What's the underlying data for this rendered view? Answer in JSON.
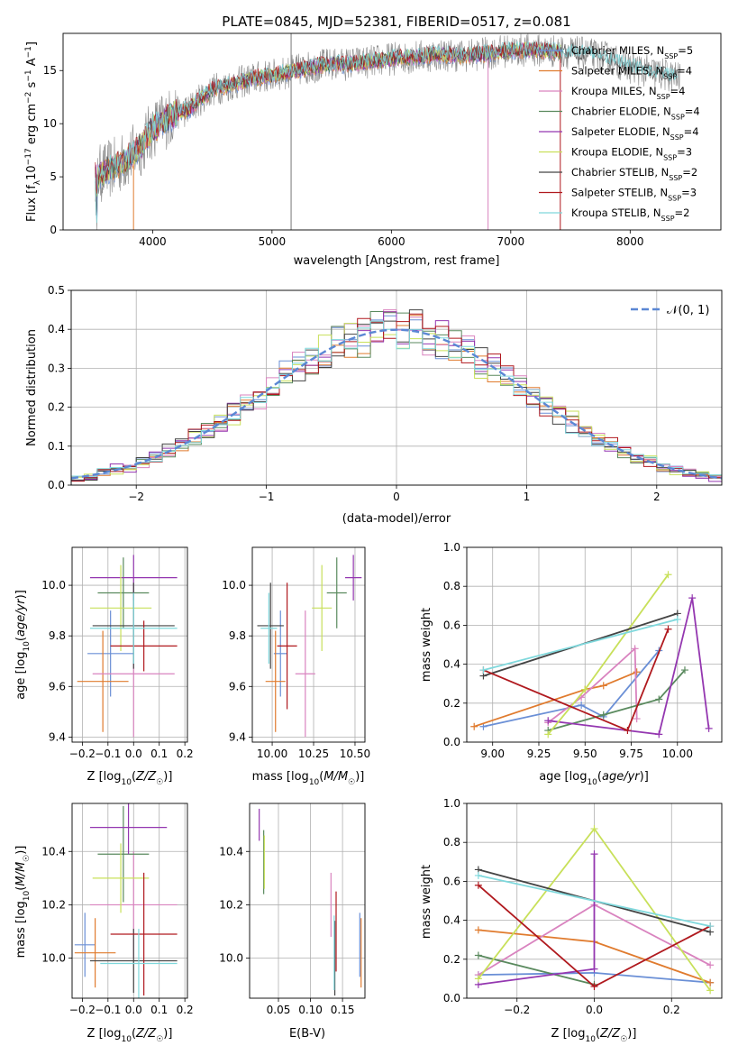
{
  "colors": [
    "#6a8fd6",
    "#e07b2e",
    "#d983bf",
    "#5a8a5e",
    "#9437b0",
    "#c8e05a",
    "#444444",
    "#b0191e",
    "#7fd8dc"
  ],
  "legend": [
    "Chabrier MILES, N_SSP=5",
    "Salpeter MILES, N_SSP=4",
    "Kroupa MILES, N_SSP=4",
    "Chabrier ELODIE, N_SSP=4",
    "Salpeter ELODIE, N_SSP=4",
    "Kroupa ELODIE, N_SSP=3",
    "Chabrier STELIB, N_SSP=2",
    "Salpeter STELIB, N_SSP=3",
    "Kroupa STELIB, N_SSP=2"
  ],
  "chart_data": [
    {
      "type": "line",
      "id": "spectrum",
      "title": "PLATE=0845, MJD=52381, FIBERID=0517, z=0.081",
      "xlabel": "wavelength [Angstrom, rest frame]",
      "ylabel": "Flux [f_λ10^-17 erg cm^-2 s^-1 A^-1]",
      "xlim": [
        3250,
        8760
      ],
      "ylim": [
        0,
        18.5
      ],
      "xticks": [
        4000,
        5000,
        6000,
        7000,
        8000
      ],
      "yticks": [
        0,
        5,
        10,
        15
      ],
      "continuum": {
        "x": [
          3520,
          3600,
          3700,
          3800,
          3900,
          4000,
          4100,
          4200,
          4300,
          4400,
          4500,
          4600,
          4700,
          4800,
          4900,
          5000,
          5200,
          5400,
          5600,
          5800,
          6000,
          6200,
          6400,
          6600,
          6800,
          7000,
          7200,
          7400,
          7600,
          7800,
          8000,
          8200,
          8400
        ],
        "y": [
          5.0,
          5.5,
          6.0,
          6.8,
          7.8,
          9.5,
          10.3,
          11.0,
          11.3,
          12.3,
          13.2,
          13.5,
          13.8,
          14.1,
          14.4,
          14.5,
          15.0,
          15.5,
          15.6,
          15.8,
          16.1,
          16.3,
          16.5,
          16.4,
          16.6,
          16.9,
          16.9,
          16.8,
          16.6,
          16.2,
          15.3,
          14.8,
          14.3
        ]
      }
    },
    {
      "type": "bar",
      "id": "residual-histogram",
      "xlabel": "(data-model)/error",
      "ylabel": "Normed distribution",
      "xlim": [
        -2.5,
        2.5
      ],
      "ylim": [
        0,
        0.5
      ],
      "xticks": [
        -2,
        -1,
        0,
        1,
        2
      ],
      "yticks": [
        0,
        0.1,
        0.2,
        0.3,
        0.4,
        0.5
      ],
      "bin_width": 0.1,
      "reference": {
        "name": "𝒩(0, 1)",
        "mean": 0,
        "sigma": 1
      }
    },
    {
      "type": "scatter",
      "id": "age-vs-metallicity",
      "xlabel": "Z [log10(Z/Z☉)]",
      "ylabel": "age  [log10(age/yr)]",
      "xlim": [
        -0.24,
        0.21
      ],
      "ylim": [
        9.38,
        10.15
      ],
      "xticks": [
        -0.2,
        -0.1,
        0.0,
        0.1,
        0.2
      ],
      "yticks": [
        9.4,
        9.6,
        9.8,
        10.0
      ],
      "points": [
        {
          "x": -0.09,
          "xerr": 0.09,
          "y": 9.73,
          "yerr": 0.17
        },
        {
          "x": -0.12,
          "xerr": 0.1,
          "y": 9.62,
          "yerr": 0.2
        },
        {
          "x": 0.0,
          "xerr": 0.16,
          "y": 9.65,
          "yerr": 0.25
        },
        {
          "x": -0.04,
          "xerr": 0.1,
          "y": 9.97,
          "yerr": 0.14
        },
        {
          "x": 0.0,
          "xerr": 0.17,
          "y": 10.03,
          "yerr": 0.09
        },
        {
          "x": -0.05,
          "xerr": 0.12,
          "y": 9.91,
          "yerr": 0.17
        },
        {
          "x": 0.0,
          "xerr": 0.16,
          "y": 9.84,
          "yerr": 0.17
        },
        {
          "x": 0.04,
          "xerr": 0.13,
          "y": 9.76,
          "yerr": 0.1
        },
        {
          "x": 0.0,
          "xerr": 0.17,
          "y": 9.83,
          "yerr": 0.14
        }
      ]
    },
    {
      "type": "scatter",
      "id": "age-vs-mass",
      "xlabel": "mass [log10(M/M☉)]",
      "ylabel": "",
      "xlim": [
        9.88,
        10.56
      ],
      "ylim": [
        9.38,
        10.15
      ],
      "xticks": [
        10.0,
        10.25,
        10.5
      ],
      "yticks": [
        9.4,
        9.6,
        9.8,
        10.0
      ],
      "points": [
        {
          "x": 10.05,
          "xerr": 0.04,
          "y": 9.73,
          "yerr": 0.17
        },
        {
          "x": 10.02,
          "xerr": 0.06,
          "y": 9.62,
          "yerr": 0.2
        },
        {
          "x": 10.2,
          "xerr": 0.06,
          "y": 9.65,
          "yerr": 0.25
        },
        {
          "x": 10.39,
          "xerr": 0.06,
          "y": 9.97,
          "yerr": 0.14
        },
        {
          "x": 10.49,
          "xerr": 0.05,
          "y": 10.03,
          "yerr": 0.09
        },
        {
          "x": 10.3,
          "xerr": 0.06,
          "y": 9.91,
          "yerr": 0.17
        },
        {
          "x": 9.99,
          "xerr": 0.08,
          "y": 9.84,
          "yerr": 0.17
        },
        {
          "x": 10.09,
          "xerr": 0.06,
          "y": 9.76,
          "yerr": 0.25
        },
        {
          "x": 9.98,
          "xerr": 0.05,
          "y": 9.83,
          "yerr": 0.14
        }
      ]
    },
    {
      "type": "line",
      "id": "weight-vs-age",
      "xlabel": "age  [log10(age/yr)]",
      "ylabel": "mass weight",
      "xlim": [
        8.86,
        10.24
      ],
      "ylim": [
        0,
        1
      ],
      "xticks": [
        9.0,
        9.25,
        9.5,
        9.75,
        10.0
      ],
      "yticks": [
        0,
        0.2,
        0.4,
        0.6,
        0.8,
        1.0
      ],
      "series": [
        {
          "x": [
            8.95,
            9.48,
            9.6,
            9.9
          ],
          "y": [
            0.08,
            0.19,
            0.13,
            0.47
          ]
        },
        {
          "x": [
            8.9,
            9.5,
            9.6,
            9.78
          ],
          "y": [
            0.08,
            0.27,
            0.29,
            0.36
          ]
        },
        {
          "x": [
            9.3,
            9.48,
            9.77,
            9.78
          ],
          "y": [
            0.1,
            0.23,
            0.48,
            0.12
          ]
        },
        {
          "x": [
            9.3,
            9.6,
            9.9,
            10.04
          ],
          "y": [
            0.06,
            0.14,
            0.22,
            0.37
          ]
        },
        {
          "x": [
            9.3,
            9.9,
            10.08,
            10.17
          ],
          "y": [
            0.11,
            0.04,
            0.74,
            0.07
          ]
        },
        {
          "x": [
            9.3,
            9.5,
            9.95
          ],
          "y": [
            0.04,
            0.27,
            0.86
          ]
        },
        {
          "x": [
            8.95,
            10.0
          ],
          "y": [
            0.34,
            0.66
          ]
        },
        {
          "x": [
            8.95,
            9.73,
            9.95
          ],
          "y": [
            0.37,
            0.06,
            0.58
          ]
        },
        {
          "x": [
            8.95,
            10.0
          ],
          "y": [
            0.37,
            0.63
          ]
        }
      ]
    },
    {
      "type": "scatter",
      "id": "mass-vs-metallicity",
      "xlabel": "Z [log10(Z/Z☉)]",
      "ylabel": "mass [log10(M/M☉)]",
      "xlim": [
        -0.24,
        0.21
      ],
      "ylim": [
        9.85,
        10.58
      ],
      "xticks": [
        -0.2,
        -0.1,
        0.0,
        0.1,
        0.2
      ],
      "yticks": [
        10.0,
        10.2,
        10.4
      ],
      "points": [
        {
          "x": -0.19,
          "xerr": 0.04,
          "y": 10.05,
          "yerr": 0.12
        },
        {
          "x": -0.15,
          "xerr": 0.08,
          "y": 10.02,
          "yerr": 0.13
        },
        {
          "x": 0.0,
          "xerr": 0.17,
          "y": 10.2,
          "yerr": 0.2
        },
        {
          "x": -0.04,
          "xerr": 0.1,
          "y": 10.39,
          "yerr": 0.18
        },
        {
          "x": -0.02,
          "xerr": 0.15,
          "y": 10.49,
          "yerr": 0.1
        },
        {
          "x": -0.05,
          "xerr": 0.11,
          "y": 10.3,
          "yerr": 0.13
        },
        {
          "x": 0.0,
          "xerr": 0.17,
          "y": 9.99,
          "yerr": 0.12
        },
        {
          "x": 0.04,
          "xerr": 0.13,
          "y": 10.09,
          "yerr": 0.23
        },
        {
          "x": 0.02,
          "xerr": 0.15,
          "y": 9.98,
          "yerr": 0.13
        }
      ]
    },
    {
      "type": "scatter",
      "id": "mass-vs-extinction",
      "xlabel": "E(B-V)",
      "ylabel": "",
      "xlim": [
        0.005,
        0.185
      ],
      "ylim": [
        9.85,
        10.58
      ],
      "xticks": [
        0.05,
        0.1,
        0.15
      ],
      "yticks": [
        10.0,
        10.2,
        10.4
      ],
      "points": [
        {
          "x": 0.177,
          "y": 10.05,
          "yerr": 0.12
        },
        {
          "x": 0.179,
          "y": 10.02,
          "yerr": 0.13
        },
        {
          "x": 0.132,
          "y": 10.2,
          "yerr": 0.12
        },
        {
          "x": 0.027,
          "y": 10.36,
          "yerr": 0.12
        },
        {
          "x": 0.02,
          "y": 10.5,
          "yerr": 0.06
        },
        {
          "x": 0.028,
          "y": 10.36,
          "yerr": 0.1
        },
        {
          "x": 0.138,
          "y": 10.0,
          "yerr": 0.14
        },
        {
          "x": 0.14,
          "y": 10.1,
          "yerr": 0.15
        },
        {
          "x": 0.137,
          "y": 10.02,
          "yerr": 0.14
        }
      ]
    },
    {
      "type": "line",
      "id": "weight-vs-metallicity",
      "xlabel": "Z [log10(Z/Z☉)]",
      "ylabel": "mass weight",
      "xlim": [
        -0.33,
        0.33
      ],
      "ylim": [
        0,
        1
      ],
      "xticks": [
        -0.2,
        0.0,
        0.2
      ],
      "yticks": [
        0,
        0.2,
        0.4,
        0.6,
        0.8,
        1.0
      ],
      "series": [
        {
          "x": [
            -0.3,
            0.0,
            0.3
          ],
          "y": [
            0.12,
            0.13,
            0.08
          ]
        },
        {
          "x": [
            -0.3,
            0.0,
            0.3
          ],
          "y": [
            0.35,
            0.29,
            0.08
          ]
        },
        {
          "x": [
            -0.3,
            0.0,
            0.3
          ],
          "y": [
            0.12,
            0.48,
            0.17
          ]
        },
        {
          "x": [
            -0.3,
            0.0
          ],
          "y": [
            0.22,
            0.07
          ]
        },
        {
          "x": [
            -0.3,
            0.0,
            0.0
          ],
          "y": [
            0.07,
            0.15,
            0.74
          ]
        },
        {
          "x": [
            -0.3,
            0.0,
            0.3
          ],
          "y": [
            0.1,
            0.87,
            0.04
          ]
        },
        {
          "x": [
            -0.3,
            0.3
          ],
          "y": [
            0.66,
            0.34
          ]
        },
        {
          "x": [
            -0.3,
            0.0,
            0.3
          ],
          "y": [
            0.58,
            0.06,
            0.37
          ]
        },
        {
          "x": [
            -0.3,
            0.3
          ],
          "y": [
            0.63,
            0.37
          ]
        }
      ]
    }
  ]
}
